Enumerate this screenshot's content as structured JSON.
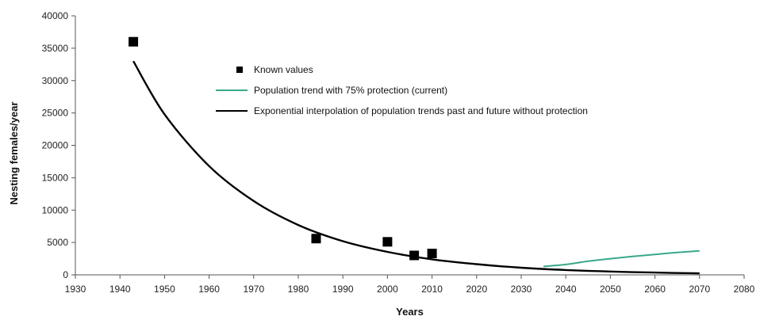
{
  "chart_data": {
    "type": "scatter",
    "title": "",
    "xlabel": "Years",
    "ylabel": "Nesting females/year",
    "xlim": [
      1930,
      2080
    ],
    "ylim": [
      0,
      40000
    ],
    "x_ticks": [
      1930,
      1940,
      1950,
      1960,
      1970,
      1980,
      1990,
      2000,
      2010,
      2020,
      2030,
      2040,
      2050,
      2060,
      2070,
      2080
    ],
    "y_ticks": [
      0,
      5000,
      10000,
      15000,
      20000,
      25000,
      30000,
      35000,
      40000
    ],
    "grid": false,
    "legend_position": "top-center",
    "series": [
      {
        "name": "Known values",
        "kind": "markers",
        "color": "#000000",
        "points": [
          {
            "x": 1943,
            "y": 36000
          },
          {
            "x": 1984,
            "y": 5600
          },
          {
            "x": 2000,
            "y": 5100
          },
          {
            "x": 2006,
            "y": 3000
          },
          {
            "x": 2010,
            "y": 3300
          }
        ]
      },
      {
        "name": "Population trend with 75% protection (current)",
        "kind": "line",
        "color": "#3aa88a",
        "points": [
          {
            "x": 2035,
            "y": 1300
          },
          {
            "x": 2040,
            "y": 1600
          },
          {
            "x": 2045,
            "y": 2100
          },
          {
            "x": 2050,
            "y": 2500
          },
          {
            "x": 2055,
            "y": 2850
          },
          {
            "x": 2060,
            "y": 3150
          },
          {
            "x": 2065,
            "y": 3450
          },
          {
            "x": 2070,
            "y": 3700
          }
        ]
      },
      {
        "name": "Exponential interpolation of population trends past and future without protection",
        "kind": "line",
        "color": "#000000",
        "points": [
          {
            "x": 1943,
            "y": 33000
          },
          {
            "x": 1950,
            "y": 24800
          },
          {
            "x": 1960,
            "y": 16800
          },
          {
            "x": 1970,
            "y": 11400
          },
          {
            "x": 1980,
            "y": 7700
          },
          {
            "x": 1990,
            "y": 5200
          },
          {
            "x": 2000,
            "y": 3550
          },
          {
            "x": 2010,
            "y": 2400
          },
          {
            "x": 2020,
            "y": 1650
          },
          {
            "x": 2030,
            "y": 1100
          },
          {
            "x": 2040,
            "y": 750
          },
          {
            "x": 2050,
            "y": 510
          },
          {
            "x": 2060,
            "y": 350
          },
          {
            "x": 2070,
            "y": 230
          }
        ]
      }
    ]
  }
}
